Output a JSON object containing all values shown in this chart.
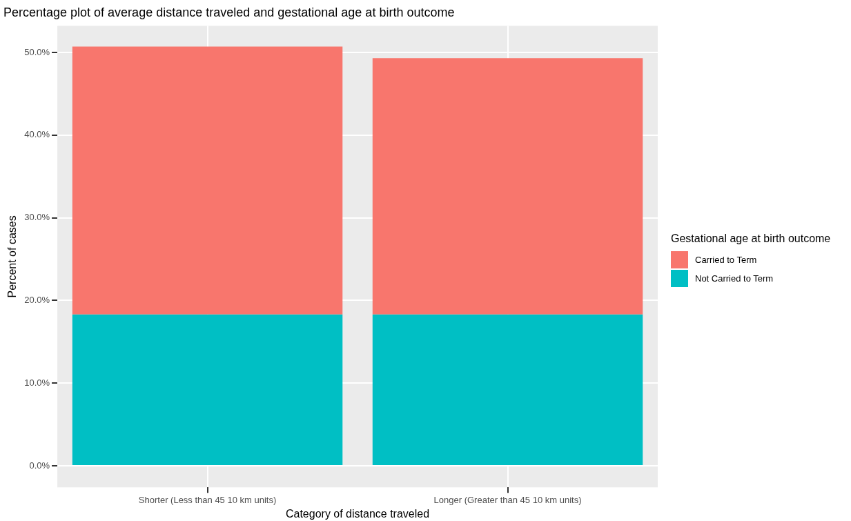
{
  "chart_data": {
    "type": "bar",
    "title": "Percentage plot of average distance traveled and gestational age at birth outcome",
    "xlabel": "Category of distance traveled",
    "ylabel": "Percent of cases",
    "legend_title": "Gestational age at birth outcome",
    "categories": [
      "Shorter (Less than 45 10 km units)",
      "Longer (Greater than 45 10 km units)"
    ],
    "stacked": true,
    "series": [
      {
        "name": "Not Carried to Term",
        "color": "#00bfc4",
        "values": [
          18.3,
          18.3
        ]
      },
      {
        "name": "Carried to Term",
        "color": "#f8766d",
        "values": [
          32.4,
          31.0
        ]
      }
    ],
    "ylim": [
      -2.6,
      53.2
    ],
    "yticks": [
      {
        "value": 0,
        "label": "0.0%"
      },
      {
        "value": 10,
        "label": "10.0%"
      },
      {
        "value": 20,
        "label": "20.0%"
      },
      {
        "value": 30,
        "label": "30.0%"
      },
      {
        "value": 40,
        "label": "40.0%"
      },
      {
        "value": 50,
        "label": "50.0%"
      }
    ],
    "grid": true,
    "legend": "right"
  }
}
